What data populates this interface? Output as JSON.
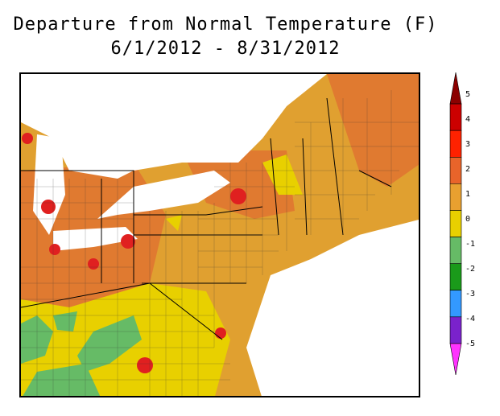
{
  "title_line1": "Departure from Normal Temperature (F)",
  "title_line2": "6/1/2012 - 8/31/2012",
  "legend": {
    "labels": [
      "5",
      "4",
      "3",
      "2",
      "1",
      "0",
      "-1",
      "-2",
      "-3",
      "-4",
      "-5"
    ],
    "colors": [
      "#8b0000",
      "#cc0000",
      "#ff2200",
      "#e8642a",
      "#e8a030",
      "#e8d000",
      "#66bb66",
      "#1a9a1a",
      "#3399ff",
      "#7a22cc",
      "#ff33ff"
    ]
  },
  "map_colors": {
    "water": "#ffffff",
    "land_warm": "#e0a030",
    "land_hot": "#e07a30",
    "land_neutral": "#e8d000",
    "land_cool": "#66bb66",
    "hotspot": "#e02020"
  }
}
